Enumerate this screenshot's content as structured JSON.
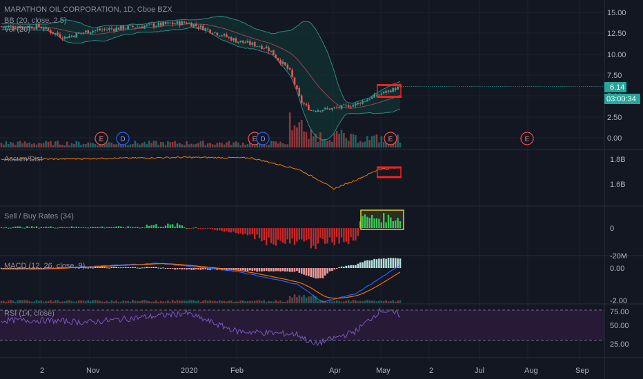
{
  "header": {
    "symbol_title": "MARATHON OIL CORPORATION, 1D, Cboe BZX",
    "bb_label": "BB (20, close, 2.5)",
    "vol_label": "Vol (20)"
  },
  "price_tags": {
    "last_price": "6.14",
    "countdown": "03:00:34"
  },
  "colors": {
    "up": "#26a69a",
    "down": "#ef5350",
    "background": "#131722",
    "bb_fill": "#0e3a38",
    "bb_line": "#2e8b86",
    "accum_line": "#f57c00",
    "rsi_line": "#7e57c2",
    "rsi_band": "#261a37",
    "annotation_red": "#ff1f1f",
    "annotation_yellow": "#e0d430",
    "sellbuy_green": "#22c55e",
    "sellbuy_red": "#c62828",
    "macd_line": "#2962ff",
    "signal_line": "#ff6d00"
  },
  "x_axis": {
    "labels": [
      "2",
      "Nov",
      "2020",
      "Feb",
      "Apr",
      "May",
      "2",
      "Jul",
      "Aug",
      "Sep"
    ]
  },
  "panes": {
    "price": {
      "y_ticks": [
        "15.00",
        "12.50",
        "10.00",
        "7.50",
        "5.00",
        "2.50",
        "0.00"
      ],
      "events": [
        "E",
        "D",
        "E",
        "D",
        "E",
        "E"
      ]
    },
    "accum": {
      "label": "Accum/Dist",
      "y_ticks": [
        "1.8B",
        "1.6B"
      ]
    },
    "sellbuy": {
      "label": "Sell / Buy Rates (34)",
      "y_ticks": [
        "0",
        "-20M"
      ]
    },
    "macd": {
      "label": "MACD (12, 26, close, 9)",
      "y_ticks": [
        "0.00",
        "-2.00"
      ]
    },
    "rsi": {
      "label": "RSI (14, close)",
      "y_ticks": [
        "75.00",
        "50.00",
        "25.00"
      ]
    }
  },
  "chart_data": [
    {
      "type": "candlestick",
      "title": "MARATHON OIL CORPORATION, 1D, Cboe BZX",
      "x_labels": [
        "2",
        "Nov",
        "2020",
        "Feb",
        "Apr",
        "May"
      ],
      "ylim": [
        0,
        15
      ],
      "y_ticks": [
        0,
        2.5,
        5,
        7.5,
        10,
        12.5,
        15
      ],
      "close_anchors": [
        {
          "x": "2019-09-02",
          "y": 13.3
        },
        {
          "x": "2019-10-01",
          "y": 12.0
        },
        {
          "x": "2019-11-01",
          "y": 12.8
        },
        {
          "x": "2019-12-01",
          "y": 13.3
        },
        {
          "x": "2020-01-01",
          "y": 13.8
        },
        {
          "x": "2020-01-15",
          "y": 12.9
        },
        {
          "x": "2020-02-01",
          "y": 11.6
        },
        {
          "x": "2020-02-20",
          "y": 10.8
        },
        {
          "x": "2020-03-05",
          "y": 8.0
        },
        {
          "x": "2020-03-12",
          "y": 4.3
        },
        {
          "x": "2020-03-18",
          "y": 3.3
        },
        {
          "x": "2020-04-01",
          "y": 3.5
        },
        {
          "x": "2020-04-15",
          "y": 4.0
        },
        {
          "x": "2020-04-30",
          "y": 5.2
        },
        {
          "x": "2020-05-14",
          "y": 6.14
        }
      ],
      "last_price": 6.14,
      "overlay": "Bollinger Bands (20, close, 2.5)",
      "annotation": {
        "resistance": 6.3,
        "support": 4.9
      }
    },
    {
      "type": "line",
      "title": "Accum/Dist",
      "y_ticks": [
        "1.8B",
        "1.6B"
      ],
      "ylim": [
        1.52,
        1.85
      ],
      "anchors": [
        {
          "x": "2019-09-02",
          "y": 1.8
        },
        {
          "x": "2020-01-01",
          "y": 1.815
        },
        {
          "x": "2020-02-10",
          "y": 1.81
        },
        {
          "x": "2020-03-10",
          "y": 1.72
        },
        {
          "x": "2020-03-25",
          "y": 1.62
        },
        {
          "x": "2020-04-01",
          "y": 1.56
        },
        {
          "x": "2020-04-15",
          "y": 1.63
        },
        {
          "x": "2020-04-30",
          "y": 1.72
        },
        {
          "x": "2020-05-14",
          "y": 1.73
        }
      ]
    },
    {
      "type": "bar",
      "title": "Sell / Buy Rates (34)",
      "y_ticks": [
        "0",
        "-20M"
      ],
      "notes": "small positive bars through Jan, large negative bars Feb-Apr, positive bars in May (highlighted)"
    },
    {
      "type": "line",
      "title": "MACD (12, 26, close, 9)",
      "y_ticks": [
        0.0,
        -2.0
      ],
      "ylim": [
        -2.3,
        0.6
      ],
      "series": [
        {
          "name": "MACD",
          "anchors": [
            {
              "x": "2019-09-02",
              "y": -0.05
            },
            {
              "x": "2019-12-15",
              "y": 0.3
            },
            {
              "x": "2020-02-01",
              "y": -0.2
            },
            {
              "x": "2020-03-10",
              "y": -1.0
            },
            {
              "x": "2020-03-25",
              "y": -2.1
            },
            {
              "x": "2020-04-15",
              "y": -1.6
            },
            {
              "x": "2020-05-14",
              "y": 0.2
            }
          ]
        }
      ]
    },
    {
      "type": "line",
      "title": "RSI (14, close)",
      "y_ticks": [
        75,
        50,
        25
      ],
      "ylim": [
        15,
        85
      ],
      "band": [
        30,
        70
      ],
      "anchors": [
        {
          "x": "2019-09-02",
          "y": 58
        },
        {
          "x": "2019-11-01",
          "y": 55
        },
        {
          "x": "2020-01-01",
          "y": 70
        },
        {
          "x": "2020-02-01",
          "y": 40
        },
        {
          "x": "2020-03-10",
          "y": 35
        },
        {
          "x": "2020-03-20",
          "y": 18
        },
        {
          "x": "2020-04-15",
          "y": 40
        },
        {
          "x": "2020-05-01",
          "y": 75
        },
        {
          "x": "2020-05-14",
          "y": 67
        }
      ]
    }
  ]
}
